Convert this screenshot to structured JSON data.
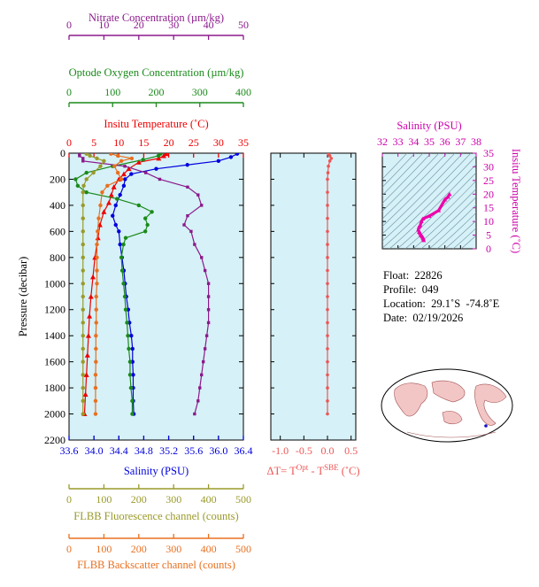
{
  "chart_data": [
    {
      "type": "line",
      "panel": "main-profile",
      "ylabel": "Pressure (decibar)",
      "y_ticks": [
        0,
        200,
        400,
        600,
        800,
        1000,
        1200,
        1400,
        1600,
        1800,
        2000,
        2200
      ],
      "ylim": [
        2200,
        0
      ],
      "axes": [
        {
          "key": "nitrate",
          "label": "Nitrate Concentration (µm/kg)",
          "ticks": [
            0,
            10,
            20,
            30,
            40,
            50
          ],
          "range": [
            0,
            50
          ],
          "color": "#8b1a8b",
          "position": "top-1"
        },
        {
          "key": "oxygen",
          "label": "Optode Oxygen Concentration (µm/kg)",
          "ticks": [
            0,
            100,
            200,
            300,
            400
          ],
          "range": [
            0,
            400
          ],
          "color": "#1a8a1a",
          "position": "top-2"
        },
        {
          "key": "temperature",
          "label": "Insitu Temperature (˚C)",
          "ticks": [
            0,
            5,
            10,
            15,
            20,
            25,
            30,
            35
          ],
          "range": [
            0,
            35
          ],
          "color": "#ee0000",
          "position": "top-3"
        },
        {
          "key": "salinity",
          "label": "Salinity (PSU)",
          "ticks": [
            "33.6",
            "34.0",
            "34.4",
            "34.8",
            "35.2",
            "35.6",
            "36.0",
            "36.4"
          ],
          "range": [
            33.6,
            36.4
          ],
          "color": "#0000dd",
          "position": "bottom-1"
        },
        {
          "key": "fluorescence",
          "label": "FLBB Fluorescence channel (counts)",
          "ticks": [
            0,
            100,
            200,
            300,
            400,
            500
          ],
          "range": [
            0,
            500
          ],
          "color": "#9a9a2a",
          "position": "bottom-2"
        },
        {
          "key": "backscatter",
          "label": "FLBB Backscatter channel (counts)",
          "ticks": [
            0,
            100,
            200,
            300,
            400,
            500
          ],
          "range": [
            0,
            500
          ],
          "color": "#e87020",
          "position": "bottom-3"
        }
      ],
      "series": [
        {
          "key": "temperature",
          "color": "#ee0000",
          "points": [
            [
              19.5,
              5
            ],
            [
              19,
              20
            ],
            [
              18,
              40
            ],
            [
              14,
              70
            ],
            [
              12,
              120
            ],
            [
              11,
              160
            ],
            [
              10,
              200
            ],
            [
              9,
              260
            ],
            [
              8.5,
              320
            ],
            [
              8,
              380
            ],
            [
              7,
              450
            ],
            [
              6.2,
              550
            ],
            [
              5.8,
              650
            ],
            [
              5.2,
              800
            ],
            [
              4.8,
              950
            ],
            [
              4.4,
              1100
            ],
            [
              4.1,
              1250
            ],
            [
              3.9,
              1400
            ],
            [
              3.7,
              1550
            ],
            [
              3.5,
              1700
            ],
            [
              3.3,
              1850
            ],
            [
              3.1,
              2000
            ]
          ]
        },
        {
          "key": "salinity",
          "color": "#0000dd",
          "points": [
            [
              36.3,
              5
            ],
            [
              36.2,
              30
            ],
            [
              36.0,
              60
            ],
            [
              35.5,
              90
            ],
            [
              35.0,
              120
            ],
            [
              34.6,
              160
            ],
            [
              34.5,
              200
            ],
            [
              34.48,
              250
            ],
            [
              34.42,
              320
            ],
            [
              34.35,
              400
            ],
            [
              34.3,
              480
            ],
            [
              34.35,
              550
            ],
            [
              34.4,
              600
            ],
            [
              34.42,
              700
            ],
            [
              34.45,
              800
            ],
            [
              34.48,
              900
            ],
            [
              34.5,
              1000
            ],
            [
              34.52,
              1100
            ],
            [
              34.55,
              1200
            ],
            [
              34.57,
              1300
            ],
            [
              34.6,
              1400
            ],
            [
              34.62,
              1500
            ],
            [
              34.62,
              1600
            ],
            [
              34.63,
              1700
            ],
            [
              34.63,
              1800
            ],
            [
              34.63,
              1900
            ],
            [
              34.64,
              2000
            ]
          ]
        },
        {
          "key": "oxygen",
          "color": "#1a8a1a",
          "points": [
            [
              210,
              5
            ],
            [
              205,
              20
            ],
            [
              170,
              50
            ],
            [
              100,
              100
            ],
            [
              40,
              150
            ],
            [
              15,
              200
            ],
            [
              20,
              250
            ],
            [
              40,
              300
            ],
            [
              110,
              350
            ],
            [
              160,
              400
            ],
            [
              190,
              450
            ],
            [
              175,
              500
            ],
            [
              180,
              550
            ],
            [
              175,
              600
            ],
            [
              130,
              650
            ],
            [
              125,
              700
            ],
            [
              120,
              800
            ],
            [
              122,
              900
            ],
            [
              125,
              1000
            ],
            [
              128,
              1100
            ],
            [
              130,
              1200
            ],
            [
              133,
              1300
            ],
            [
              135,
              1400
            ],
            [
              137,
              1500
            ],
            [
              140,
              1600
            ],
            [
              140,
              1700
            ],
            [
              142,
              1800
            ],
            [
              145,
              1900
            ],
            [
              145,
              2000
            ]
          ]
        },
        {
          "key": "nitrate",
          "color": "#8b1a8b",
          "points": [
            [
              3,
              5
            ],
            [
              3,
              20
            ],
            [
              4,
              40
            ],
            [
              4,
              60
            ],
            [
              16,
              100
            ],
            [
              22,
              150
            ],
            [
              26,
              200
            ],
            [
              34,
              260
            ],
            [
              37,
              320
            ],
            [
              38,
              400
            ],
            [
              34,
              480
            ],
            [
              33,
              550
            ],
            [
              35,
              600
            ],
            [
              36,
              700
            ],
            [
              38,
              800
            ],
            [
              39,
              900
            ],
            [
              40,
              1000
            ],
            [
              40,
              1100
            ],
            [
              40,
              1200
            ],
            [
              40,
              1300
            ],
            [
              39.5,
              1400
            ],
            [
              39,
              1500
            ],
            [
              38.5,
              1600
            ],
            [
              38,
              1700
            ],
            [
              37.5,
              1800
            ],
            [
              37,
              1900
            ],
            [
              36,
              2000
            ]
          ]
        },
        {
          "key": "fluorescence",
          "color": "#9a9a2a",
          "points": [
            [
              50,
              5
            ],
            [
              60,
              20
            ],
            [
              80,
              40
            ],
            [
              100,
              60
            ],
            [
              90,
              100
            ],
            [
              70,
              150
            ],
            [
              50,
              200
            ],
            [
              42,
              250
            ],
            [
              40,
              300
            ],
            [
              40,
              400
            ],
            [
              40,
              500
            ],
            [
              40,
              600
            ],
            [
              40,
              700
            ],
            [
              40,
              800
            ],
            [
              40,
              900
            ],
            [
              40,
              1000
            ],
            [
              40,
              1100
            ],
            [
              40,
              1200
            ],
            [
              40,
              1300
            ],
            [
              40,
              1400
            ],
            [
              40,
              1500
            ],
            [
              40,
              1600
            ],
            [
              40,
              1700
            ],
            [
              40,
              1800
            ],
            [
              40,
              1900
            ],
            [
              40,
              2000
            ]
          ]
        },
        {
          "key": "backscatter",
          "color": "#e87020",
          "points": [
            [
              120,
              5
            ],
            [
              140,
              20
            ],
            [
              180,
              40
            ],
            [
              150,
              60
            ],
            [
              130,
              100
            ],
            [
              140,
              150
            ],
            [
              150,
              200
            ],
            [
              110,
              250
            ],
            [
              95,
              300
            ],
            [
              90,
              400
            ],
            [
              85,
              500
            ],
            [
              82,
              600
            ],
            [
              80,
              700
            ],
            [
              80,
              800
            ],
            [
              80,
              900
            ],
            [
              80,
              1000
            ],
            [
              78,
              1100
            ],
            [
              78,
              1200
            ],
            [
              78,
              1300
            ],
            [
              77,
              1400
            ],
            [
              77,
              1500
            ],
            [
              77,
              1600
            ],
            [
              76,
              1700
            ],
            [
              76,
              1800
            ],
            [
              76,
              1900
            ],
            [
              76,
              2000
            ]
          ]
        }
      ]
    },
    {
      "type": "line",
      "panel": "delta-t",
      "xlabel": "ΔT= T^Opt - T^SBE (˚C)",
      "x_ticks": [
        "-1.0",
        "-0.5",
        "0.0",
        "0.5"
      ],
      "xlim": [
        -1.2,
        0.6
      ],
      "ylim": [
        2200,
        0
      ],
      "series": [
        {
          "name": "dT",
          "color": "#ee5555",
          "points": [
            [
              0.02,
              5
            ],
            [
              0.05,
              20
            ],
            [
              0.08,
              40
            ],
            [
              0.05,
              60
            ],
            [
              0.02,
              100
            ],
            [
              0.01,
              150
            ],
            [
              0.0,
              200
            ],
            [
              0.0,
              300
            ],
            [
              0.0,
              400
            ],
            [
              0.0,
              500
            ],
            [
              0.0,
              600
            ],
            [
              0.0,
              700
            ],
            [
              0.0,
              800
            ],
            [
              0.0,
              900
            ],
            [
              0.0,
              1000
            ],
            [
              0.0,
              1100
            ],
            [
              0.0,
              1200
            ],
            [
              0.0,
              1300
            ],
            [
              0.0,
              1400
            ],
            [
              0.0,
              1500
            ],
            [
              0.0,
              1600
            ],
            [
              0.0,
              1700
            ],
            [
              0.0,
              1800
            ],
            [
              0.0,
              1900
            ],
            [
              0.0,
              2000
            ]
          ]
        }
      ]
    },
    {
      "type": "scatter",
      "panel": "ts-diagram",
      "xlabel": "Salinity (PSU)",
      "ylabel": "Insitu Temperature (˚C)",
      "x_ticks": [
        "32",
        "33",
        "34",
        "35",
        "36",
        "37",
        "38"
      ],
      "y_ticks": [
        "0",
        "5",
        "10",
        "15",
        "20",
        "25",
        "30",
        "35"
      ],
      "xlim": [
        32,
        38
      ],
      "ylim": [
        0,
        35
      ],
      "color": "#ee00aa",
      "series": [
        {
          "name": "TS",
          "points": [
            [
              36.3,
              20
            ],
            [
              36.2,
              19
            ],
            [
              36.0,
              18
            ],
            [
              35.6,
              14
            ],
            [
              35.0,
              12
            ],
            [
              34.6,
              11
            ],
            [
              34.5,
              10
            ],
            [
              34.42,
              8.5
            ],
            [
              34.35,
              8
            ],
            [
              34.3,
              7
            ],
            [
              34.35,
              6.2
            ],
            [
              34.4,
              5.8
            ],
            [
              34.45,
              5.2
            ],
            [
              34.5,
              4.8
            ],
            [
              34.55,
              4.4
            ],
            [
              34.6,
              4
            ],
            [
              34.62,
              3.7
            ],
            [
              34.64,
              3.1
            ]
          ]
        }
      ]
    }
  ],
  "info": {
    "float": "Float:  22826",
    "profile": "Profile:  049",
    "location": "Location:  29.1˚S  -74.8˚E",
    "date": "Date:  02/19/2026"
  }
}
